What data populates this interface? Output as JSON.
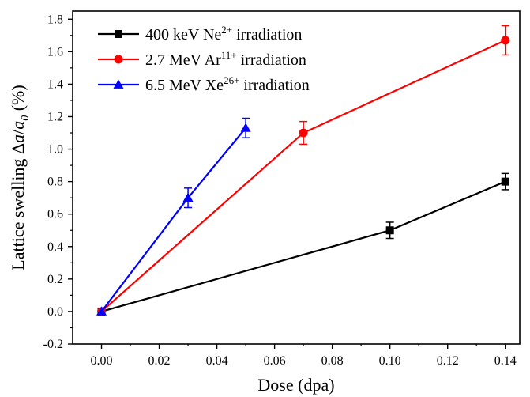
{
  "chart_data": {
    "type": "line",
    "xlabel": "Dose (dpa)",
    "ylabel": "Lattice swelling Δa/a0 (%)",
    "ylabel_parts": {
      "prefix": "Lattice swelling Δ",
      "a1": "a",
      "slash": "/",
      "a2": "a",
      "sub": "0",
      "suffix": " (%)"
    },
    "xlim": [
      -0.01,
      0.145
    ],
    "ylim": [
      -0.2,
      1.85
    ],
    "xticks": [
      0.0,
      0.02,
      0.04,
      0.06,
      0.08,
      0.1,
      0.12,
      0.14
    ],
    "xtick_labels": [
      "0.00",
      "0.02",
      "0.04",
      "0.06",
      "0.08",
      "0.10",
      "0.12",
      "0.14"
    ],
    "yticks": [
      -0.2,
      0.0,
      0.2,
      0.4,
      0.6,
      0.8,
      1.0,
      1.2,
      1.4,
      1.6,
      1.8
    ],
    "ytick_labels": [
      "-0.2",
      "0.0",
      "0.2",
      "0.4",
      "0.6",
      "0.8",
      "1.0",
      "1.2",
      "1.4",
      "1.6",
      "1.8"
    ],
    "grid": false,
    "legend_position": "top-left",
    "series": [
      {
        "name": "400 keV Ne2+ irradiation",
        "legend": {
          "pre": "400 keV Ne",
          "sup": "2+",
          "post": " irradiation"
        },
        "color": "#000000",
        "marker": "square",
        "x": [
          0.0,
          0.1,
          0.14
        ],
        "y": [
          0.0,
          0.5,
          0.8
        ],
        "err": [
          0.0,
          0.05,
          0.05
        ]
      },
      {
        "name": "2.7 MeV Ar11+ irradiation",
        "legend": {
          "pre": "2.7 MeV Ar",
          "sup": "11+",
          "post": " irradiation"
        },
        "color": "#ff0000",
        "marker": "circle",
        "x": [
          0.0,
          0.07,
          0.14
        ],
        "y": [
          0.0,
          1.1,
          1.67
        ],
        "err": [
          0.0,
          0.07,
          0.09
        ]
      },
      {
        "name": "6.5 MeV Xe26+ irradiation",
        "legend": {
          "pre": "6.5 MeV Xe",
          "sup": "26+",
          "post": " irradiation"
        },
        "color": "#0000ff",
        "marker": "triangle",
        "x": [
          0.0,
          0.03,
          0.05
        ],
        "y": [
          0.0,
          0.7,
          1.13
        ],
        "err": [
          0.0,
          0.06,
          0.06
        ]
      }
    ]
  }
}
